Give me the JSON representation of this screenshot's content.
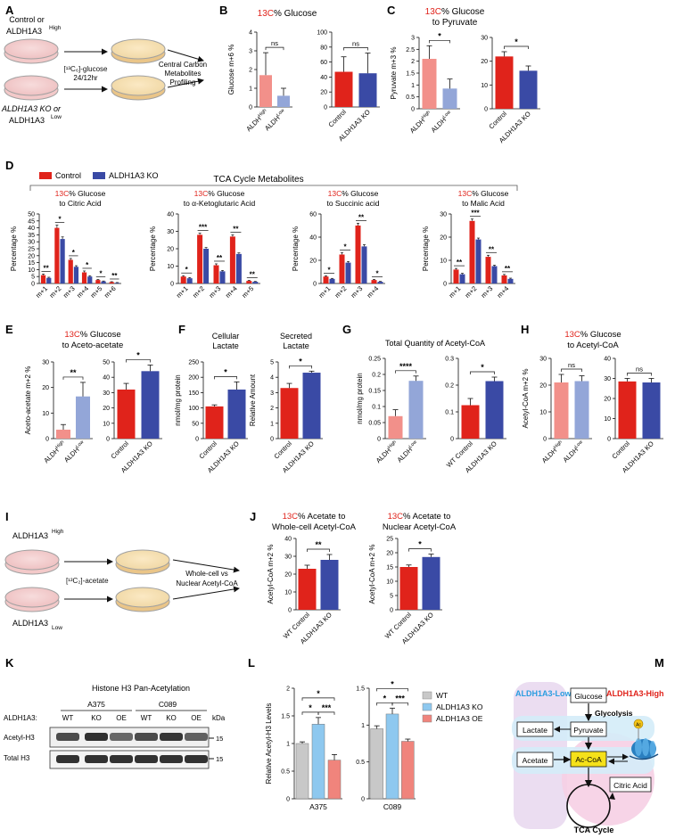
{
  "panels": {
    "A": "A",
    "B": "B",
    "C": "C",
    "D": "D",
    "E": "E",
    "F": "F",
    "G": "G",
    "H": "H",
    "I": "I",
    "J": "J",
    "K": "K",
    "L": "L",
    "M": "M"
  },
  "colors": {
    "red": "#e0231b",
    "blue": "#3a4aa5",
    "lightred": "#f2908a",
    "lightblue": "#93a6d8",
    "grey": "#c8c8c8",
    "skyblue": "#8ec8ef",
    "salmon": "#f0847c",
    "accentred": "#e0231b"
  },
  "panelA": {
    "top_label": "Control or",
    "top_label2": "ALDH1A3",
    "top_sup": "High",
    "glucose": "[¹³C₆]-glucose",
    "time": "24/12hr",
    "bottom_label": "ALDH1A3 KO or",
    "bottom_label2": "ALDH1A3",
    "bottom_sup": "Low",
    "right1": "Central Carbon",
    "right2": "Metabolites",
    "right3": "Profiling"
  },
  "panelB": {
    "title_red": "13C",
    "title_rest": "% Glucose"
  },
  "panelC": {
    "title_red": "13C",
    "title_rest": "% Glucose",
    "subtitle": "to Pyruvate"
  },
  "panelD": {
    "legend_control": "Control",
    "legend_ko": "ALDH1A3 KO",
    "header": "TCA Cycle Metabolites"
  },
  "panelE": {
    "title_red": "13C",
    "title_rest": "% Glucose",
    "subtitle": "to Aceto-acetate"
  },
  "panelF": {
    "t1": "Cellular",
    "t2": "Lactate",
    "t3": "Secreted",
    "t4": "Lactate"
  },
  "panelG": {
    "title": "Total Quantity of Acetyl-CoA"
  },
  "panelH": {
    "title_red": "13C",
    "title_rest": "% Glucose",
    "subtitle": "to Acetyl-CoA"
  },
  "panelI": {
    "top": "ALDH1A3",
    "top_sup": "High",
    "label": "[¹³C₂]-acetate",
    "bottom": "ALDH1A3",
    "bottom_sup": "Low",
    "right1": "Whole-cell vs",
    "right2": "Nuclear Acetyl-CoA"
  },
  "panelJ": {
    "t1_red": "13C",
    "t1_rest": "% Acetate to",
    "t1_sub": "Whole-cell Acetyl-CoA",
    "t2_red": "13C",
    "t2_rest": "% Acetate to",
    "t2_sub": "Nuclear Acetyl-CoA"
  },
  "panelK": {
    "title": "Histone H3 Pan-Acetylation",
    "line1": "A375",
    "line2": "C089",
    "row_label": "ALDH1A3:",
    "lanes": [
      "WT",
      "KO",
      "OE",
      "WT",
      "KO",
      "OE"
    ],
    "kda": "kDa",
    "band1": "Acetyl-H3",
    "band2": "Total H3",
    "mw": "15"
  },
  "panelL": {
    "legend": [
      "WT",
      "ALDH1A3 KO",
      "ALDH1A3 OE"
    ]
  },
  "panelM": {
    "low": "ALDH1A3-Low",
    "high": "ALDH1A3-High",
    "glucose": "Glucose",
    "glycolysis": "Glycolysis",
    "lactate": "Lactate",
    "pyruvate": "Pyruvate",
    "acetate": "Acetate",
    "accoa": "Ac-CoA",
    "citric": "Citric Acid",
    "tca": "TCA Cycle",
    "ac": "Ac"
  },
  "chart_data": [
    {
      "id": "B1",
      "type": "bar",
      "categories": [
        "ALDH^High",
        "ALDH^Low"
      ],
      "values": [
        1.7,
        0.6
      ],
      "errors": [
        1.2,
        0.4
      ],
      "ylabel": "Glucose m+6 %",
      "ylim": [
        0,
        4
      ],
      "yticks": [
        0,
        1,
        2,
        3,
        4
      ],
      "colors": [
        "#f2908a",
        "#93a6d8"
      ],
      "sig": [
        {
          "a": 0,
          "b": 1,
          "label": "ns"
        }
      ]
    },
    {
      "id": "B2",
      "type": "bar",
      "categories": [
        "Control",
        "ALDH1A3 KO"
      ],
      "values": [
        47,
        45
      ],
      "errors": [
        20,
        27
      ],
      "ylabel": "",
      "ylim": [
        0,
        100
      ],
      "yticks": [
        0,
        20,
        40,
        60,
        80,
        100
      ],
      "colors": [
        "#e0231b",
        "#3a4aa5"
      ],
      "sig": [
        {
          "a": 0,
          "b": 1,
          "label": "ns"
        }
      ]
    },
    {
      "id": "C1",
      "type": "bar",
      "categories": [
        "ALDH^High",
        "ALDH^Low"
      ],
      "values": [
        2.1,
        0.85
      ],
      "errors": [
        0.55,
        0.4
      ],
      "ylabel": "Pyruvate m+3 %",
      "ylim": [
        0,
        3
      ],
      "yticks": [
        0,
        0.5,
        1,
        1.5,
        2,
        2.5,
        3
      ],
      "colors": [
        "#f2908a",
        "#93a6d8"
      ],
      "sig": [
        {
          "a": 0,
          "b": 1,
          "label": "*"
        }
      ]
    },
    {
      "id": "C2",
      "type": "bar",
      "categories": [
        "Control",
        "ALDH1A3 KO"
      ],
      "values": [
        22,
        16
      ],
      "errors": [
        2,
        2
      ],
      "ylabel": "",
      "ylim": [
        0,
        30
      ],
      "yticks": [
        0,
        10,
        20,
        30
      ],
      "colors": [
        "#e0231b",
        "#3a4aa5"
      ],
      "sig": [
        {
          "a": 0,
          "b": 1,
          "label": "*"
        }
      ]
    },
    {
      "id": "D1",
      "type": "bar",
      "title_red": "13C",
      "title_rest": "% Glucose",
      "subtitle": "to Citric Acid",
      "categories": [
        "m+1",
        "m+2",
        "m+3",
        "m+4",
        "m+5",
        "m+6"
      ],
      "series": [
        {
          "name": "Control",
          "values": [
            6,
            40,
            17,
            8,
            2.5,
            1
          ]
        },
        {
          "name": "ALDH1A3 KO",
          "values": [
            4,
            32,
            12,
            5,
            1.5,
            0.5
          ]
        }
      ],
      "errors": [
        [
          0.8,
          2,
          1,
          1,
          0.4,
          0.3
        ],
        [
          0.5,
          1.5,
          0.8,
          0.6,
          0.3,
          0.2
        ]
      ],
      "sig": [
        "**",
        "*",
        "*",
        "*",
        "*",
        "**"
      ],
      "ylabel": "Percentage %",
      "ylim": [
        0,
        50
      ],
      "yticks": [
        0,
        5,
        10,
        15,
        20,
        25,
        30,
        35,
        40,
        45,
        50
      ]
    },
    {
      "id": "D2",
      "type": "bar",
      "title_red": "13C",
      "title_rest": "% Glucose",
      "subtitle": "to α-Ketoglutaric Acid",
      "categories": [
        "m+1",
        "m+2",
        "m+3",
        "m+4",
        "m+5"
      ],
      "series": [
        {
          "name": "Control",
          "values": [
            4,
            28,
            10.5,
            27,
            1.5
          ]
        },
        {
          "name": "ALDH1A3 KO",
          "values": [
            3,
            20,
            7,
            17,
            1
          ]
        }
      ],
      "errors": [
        [
          0.5,
          1,
          0.8,
          1,
          0.3
        ],
        [
          0.4,
          0.7,
          0.5,
          0.6,
          0.2
        ]
      ],
      "sig": [
        "*",
        "***",
        "**",
        "**",
        "**"
      ],
      "ylabel": "Percentage %",
      "ylim": [
        0,
        40
      ],
      "yticks": [
        0,
        10,
        20,
        30,
        40
      ]
    },
    {
      "id": "D3",
      "type": "bar",
      "title_red": "13C",
      "title_rest": "% Glucose",
      "subtitle": "to Succinic acid",
      "categories": [
        "m+1",
        "m+2",
        "m+3",
        "m+4"
      ],
      "series": [
        {
          "name": "Control",
          "values": [
            6,
            25,
            50,
            3
          ]
        },
        {
          "name": "ALDH1A3 KO",
          "values": [
            4,
            18,
            32,
            1.5
          ]
        }
      ],
      "errors": [
        [
          0.6,
          1.5,
          2,
          0.5
        ],
        [
          0.4,
          1,
          1.5,
          0.3
        ]
      ],
      "sig": [
        "*",
        "*",
        "**",
        "*"
      ],
      "ylabel": "Percentage %",
      "ylim": [
        0,
        60
      ],
      "yticks": [
        0,
        20,
        40,
        60
      ]
    },
    {
      "id": "D4",
      "type": "bar",
      "title_red": "13C",
      "title_rest": "% Glucose",
      "subtitle": "to Malic Acid",
      "categories": [
        "m+1",
        "m+2",
        "m+3",
        "m+4"
      ],
      "series": [
        {
          "name": "Control",
          "values": [
            6,
            27,
            11.5,
            3.5
          ]
        },
        {
          "name": "ALDH1A3 KO",
          "values": [
            4,
            19,
            7.5,
            2
          ]
        }
      ],
      "errors": [
        [
          0.5,
          0.8,
          0.7,
          0.4
        ],
        [
          0.4,
          0.6,
          0.4,
          0.3
        ]
      ],
      "sig": [
        "**",
        "***",
        "**",
        "**"
      ],
      "ylabel": "Percentage %",
      "ylim": [
        0,
        30
      ],
      "yticks": [
        0,
        10,
        20,
        30
      ]
    },
    {
      "id": "E1",
      "type": "bar",
      "categories": [
        "ALDH^High",
        "ALDH^Low"
      ],
      "values": [
        3.5,
        16.5
      ],
      "errors": [
        2,
        5.5
      ],
      "ylabel": "Aceto-acetate m+2 %",
      "ylim": [
        0,
        30
      ],
      "yticks": [
        0,
        10,
        20,
        30
      ],
      "colors": [
        "#f2908a",
        "#93a6d8"
      ],
      "sig": [
        {
          "a": 0,
          "b": 1,
          "label": "**"
        }
      ]
    },
    {
      "id": "E2",
      "type": "bar",
      "categories": [
        "Control",
        "ALDH1A3 KO"
      ],
      "values": [
        32,
        44
      ],
      "errors": [
        4,
        4
      ],
      "ylabel": "",
      "ylim": [
        0,
        50
      ],
      "yticks": [
        0,
        10,
        20,
        30,
        40,
        50
      ],
      "colors": [
        "#e0231b",
        "#3a4aa5"
      ],
      "sig": [
        {
          "a": 0,
          "b": 1,
          "label": "*"
        }
      ]
    },
    {
      "id": "F1",
      "type": "bar",
      "categories": [
        "Control",
        "ALDH1A3 KO"
      ],
      "values": [
        105,
        160
      ],
      "errors": [
        5,
        25
      ],
      "ylabel": "nmol/mg protein",
      "ylim": [
        0,
        250
      ],
      "yticks": [
        0,
        50,
        100,
        150,
        200,
        250
      ],
      "colors": [
        "#e0231b",
        "#3a4aa5"
      ],
      "sig": [
        {
          "a": 0,
          "b": 1,
          "label": "*"
        }
      ]
    },
    {
      "id": "F2",
      "type": "bar",
      "categories": [
        "Control",
        "ALDH1A3 KO"
      ],
      "values": [
        3.3,
        4.3
      ],
      "errors": [
        0.3,
        0.1
      ],
      "ylabel": "Relative Amount",
      "ylim": [
        0,
        5
      ],
      "yticks": [
        0,
        1,
        2,
        3,
        4,
        5
      ],
      "colors": [
        "#e0231b",
        "#3a4aa5"
      ],
      "sig": [
        {
          "a": 0,
          "b": 1,
          "label": "*"
        }
      ]
    },
    {
      "id": "G1",
      "type": "bar",
      "categories": [
        "ALDH^High",
        "ALDH^Low"
      ],
      "values": [
        0.07,
        0.18
      ],
      "errors": [
        0.02,
        0.015
      ],
      "ylabel": "nmol/mg protein",
      "ylim": [
        0,
        0.25
      ],
      "yticks": [
        0,
        0.05,
        0.1,
        0.15,
        0.2,
        0.25
      ],
      "colors": [
        "#f2908a",
        "#93a6d8"
      ],
      "sig": [
        {
          "a": 0,
          "b": 1,
          "label": "****"
        }
      ]
    },
    {
      "id": "G2",
      "type": "bar",
      "categories": [
        "WT Control",
        "ALDH1A3 KO"
      ],
      "values": [
        0.125,
        0.215
      ],
      "errors": [
        0.025,
        0.015
      ],
      "ylabel": "",
      "ylim": [
        0,
        0.3
      ],
      "yticks": [
        0,
        0.1,
        0.2,
        0.3
      ],
      "colors": [
        "#e0231b",
        "#3a4aa5"
      ],
      "sig": [
        {
          "a": 0,
          "b": 1,
          "label": "*"
        }
      ]
    },
    {
      "id": "H1",
      "type": "bar",
      "categories": [
        "ALDH^High",
        "ALDH^Low"
      ],
      "values": [
        21,
        21.5
      ],
      "errors": [
        3,
        2
      ],
      "ylabel": "Acetyl-CoA m+2 %",
      "ylim": [
        0,
        30
      ],
      "yticks": [
        0,
        10,
        20,
        30
      ],
      "colors": [
        "#f2908a",
        "#93a6d8"
      ],
      "sig": [
        {
          "a": 0,
          "b": 1,
          "label": "ns"
        }
      ]
    },
    {
      "id": "H2",
      "type": "bar",
      "categories": [
        "Control",
        "ALDH1A3 KO"
      ],
      "values": [
        28.5,
        28
      ],
      "errors": [
        1.5,
        2
      ],
      "ylabel": "",
      "ylim": [
        0,
        40
      ],
      "yticks": [
        0,
        10,
        20,
        30,
        40
      ],
      "colors": [
        "#e0231b",
        "#3a4aa5"
      ],
      "sig": [
        {
          "a": 0,
          "b": 1,
          "label": "ns"
        }
      ]
    },
    {
      "id": "J1",
      "type": "bar",
      "categories": [
        "WT Control",
        "ALDH1A3 KO"
      ],
      "values": [
        23,
        28
      ],
      "errors": [
        2,
        3
      ],
      "ylabel": "Acetyl-CoA m+2 %",
      "ylim": [
        0,
        40
      ],
      "yticks": [
        0,
        10,
        20,
        30,
        40
      ],
      "colors": [
        "#e0231b",
        "#3a4aa5"
      ],
      "sig": [
        {
          "a": 0,
          "b": 1,
          "label": "**"
        }
      ]
    },
    {
      "id": "J2",
      "type": "bar",
      "categories": [
        "WT Control",
        "ALDH1A3 KO"
      ],
      "values": [
        15,
        18.5
      ],
      "errors": [
        0.7,
        1
      ],
      "ylabel": "Acetyl-CoA m+2 %",
      "ylim": [
        0,
        25
      ],
      "yticks": [
        0,
        5,
        10,
        15,
        20,
        25
      ],
      "colors": [
        "#e0231b",
        "#3a4aa5"
      ],
      "sig": [
        {
          "a": 0,
          "b": 1,
          "label": "*"
        }
      ]
    },
    {
      "id": "L1",
      "type": "bar",
      "xlabel": "A375",
      "categories": [
        "WT",
        "ALDH1A3 KO",
        "ALDH1A3 OE"
      ],
      "values": [
        1.0,
        1.35,
        0.7
      ],
      "errors": [
        0.03,
        0.12,
        0.1
      ],
      "ylabel": "Relative Acetyl-H3 Levels",
      "ylim": [
        0,
        2.0
      ],
      "yticks": [
        0,
        0.5,
        1.0,
        1.5,
        2.0
      ],
      "colors": [
        "#c8c8c8",
        "#8ec8ef",
        "#f0847c"
      ],
      "sig": [
        {
          "a": 0,
          "b": 1,
          "label": "*"
        },
        {
          "a": 1,
          "b": 2,
          "label": "***"
        },
        {
          "a": 0,
          "b": 2,
          "label": "*"
        }
      ]
    },
    {
      "id": "L2",
      "type": "bar",
      "xlabel": "C089",
      "categories": [
        "WT",
        "ALDH1A3 KO",
        "ALDH1A3 OE"
      ],
      "values": [
        0.95,
        1.15,
        0.78
      ],
      "errors": [
        0.04,
        0.08,
        0.03
      ],
      "ylabel": "",
      "ylim": [
        0,
        1.5
      ],
      "yticks": [
        0,
        0.5,
        1.0,
        1.5
      ],
      "colors": [
        "#c8c8c8",
        "#8ec8ef",
        "#f0847c"
      ],
      "sig": [
        {
          "a": 0,
          "b": 1,
          "label": "*"
        },
        {
          "a": 1,
          "b": 2,
          "label": "***"
        },
        {
          "a": 0,
          "b": 2,
          "label": "*"
        }
      ]
    }
  ]
}
